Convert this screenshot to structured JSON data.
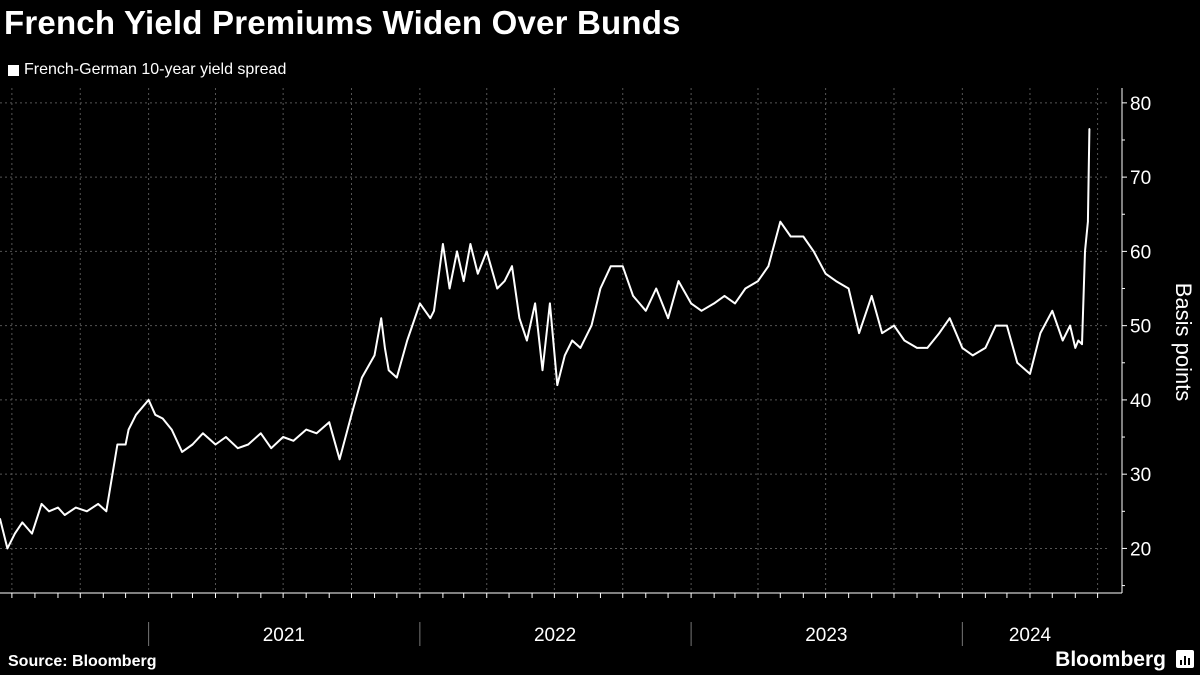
{
  "title": "French Yield Premiums Widen Over Bunds",
  "legend": "French-German 10-year yield spread",
  "source": "Source: Bloomberg",
  "brand": "Bloomberg",
  "colors": {
    "background": "#000000",
    "line": "#ffffff",
    "grid": "#555555"
  },
  "chart_data": {
    "type": "line",
    "title": "French Yield Premiums Widen Over Bunds",
    "xlabel": "",
    "ylabel": "Basis points",
    "ylim": [
      14,
      82
    ],
    "yticks": [
      20,
      30,
      40,
      50,
      60,
      70,
      80
    ],
    "xlim": [
      "2020-06-15",
      "2024-07-15"
    ],
    "x_tick_labels": [
      "2021",
      "2022",
      "2023",
      "2024"
    ],
    "grid": true,
    "legend_position": "top-left",
    "series": [
      {
        "name": "French-German 10-year yield spread",
        "x": [
          "2020-06-15",
          "2020-06-25",
          "2020-07-05",
          "2020-07-15",
          "2020-07-28",
          "2020-08-10",
          "2020-08-20",
          "2020-09-01",
          "2020-09-10",
          "2020-09-25",
          "2020-10-10",
          "2020-10-25",
          "2020-11-05",
          "2020-11-20",
          "2020-12-01",
          "2020-12-05",
          "2020-12-15",
          "2021-01-01",
          "2021-01-10",
          "2021-01-20",
          "2021-02-01",
          "2021-02-15",
          "2021-03-01",
          "2021-03-15",
          "2021-04-01",
          "2021-04-15",
          "2021-05-01",
          "2021-05-15",
          "2021-06-01",
          "2021-06-15",
          "2021-07-01",
          "2021-07-15",
          "2021-08-01",
          "2021-08-15",
          "2021-09-01",
          "2021-09-15",
          "2021-10-01",
          "2021-10-15",
          "2021-11-01",
          "2021-11-10",
          "2021-11-15",
          "2021-11-20",
          "2021-12-01",
          "2021-12-15",
          "2022-01-01",
          "2022-01-15",
          "2022-01-20",
          "2022-02-01",
          "2022-02-10",
          "2022-02-20",
          "2022-03-01",
          "2022-03-10",
          "2022-03-20",
          "2022-04-01",
          "2022-04-15",
          "2022-04-25",
          "2022-05-05",
          "2022-05-15",
          "2022-05-25",
          "2022-06-05",
          "2022-06-15",
          "2022-06-25",
          "2022-07-05",
          "2022-07-15",
          "2022-07-25",
          "2022-08-05",
          "2022-08-20",
          "2022-09-01",
          "2022-09-15",
          "2022-10-01",
          "2022-10-15",
          "2022-11-01",
          "2022-11-15",
          "2022-12-01",
          "2022-12-15",
          "2023-01-01",
          "2023-01-15",
          "2023-02-01",
          "2023-02-15",
          "2023-03-01",
          "2023-03-15",
          "2023-04-01",
          "2023-04-15",
          "2023-05-01",
          "2023-05-15",
          "2023-06-01",
          "2023-06-15",
          "2023-07-01",
          "2023-07-15",
          "2023-08-01",
          "2023-08-15",
          "2023-09-01",
          "2023-09-15",
          "2023-10-01",
          "2023-10-15",
          "2023-11-01",
          "2023-11-15",
          "2023-12-01",
          "2023-12-15",
          "2024-01-01",
          "2024-01-15",
          "2024-02-01",
          "2024-02-15",
          "2024-03-01",
          "2024-03-15",
          "2024-04-01",
          "2024-04-15",
          "2024-05-01",
          "2024-05-15",
          "2024-05-25",
          "2024-06-01",
          "2024-06-05",
          "2024-06-10",
          "2024-06-14",
          "2024-06-18",
          "2024-06-20"
        ],
        "values": [
          24,
          20,
          22,
          23.5,
          22,
          26,
          25,
          25.5,
          24.5,
          25.5,
          25,
          26,
          25,
          34,
          34,
          36,
          38,
          40,
          38,
          37.5,
          36,
          33,
          34,
          35.5,
          34,
          35,
          33.5,
          34,
          35.5,
          33.5,
          35,
          34.5,
          36,
          35.5,
          37,
          32,
          38,
          43,
          46,
          51,
          47,
          44,
          43,
          48,
          53,
          51,
          52,
          61,
          55,
          60,
          56,
          61,
          57,
          60,
          55,
          56,
          58,
          51,
          48,
          53,
          44,
          53,
          42,
          46,
          48,
          47,
          50,
          55,
          58,
          58,
          54,
          52,
          55,
          51,
          56,
          53,
          52,
          53,
          54,
          53,
          55,
          56,
          58,
          64,
          62,
          62,
          60,
          57,
          56,
          55,
          49,
          54,
          49,
          50,
          48,
          47,
          47,
          49,
          51,
          47,
          46,
          47,
          50,
          50,
          45,
          43.5,
          49,
          52,
          48,
          50,
          47,
          48,
          47.5,
          60,
          64,
          76.5
        ]
      }
    ]
  }
}
